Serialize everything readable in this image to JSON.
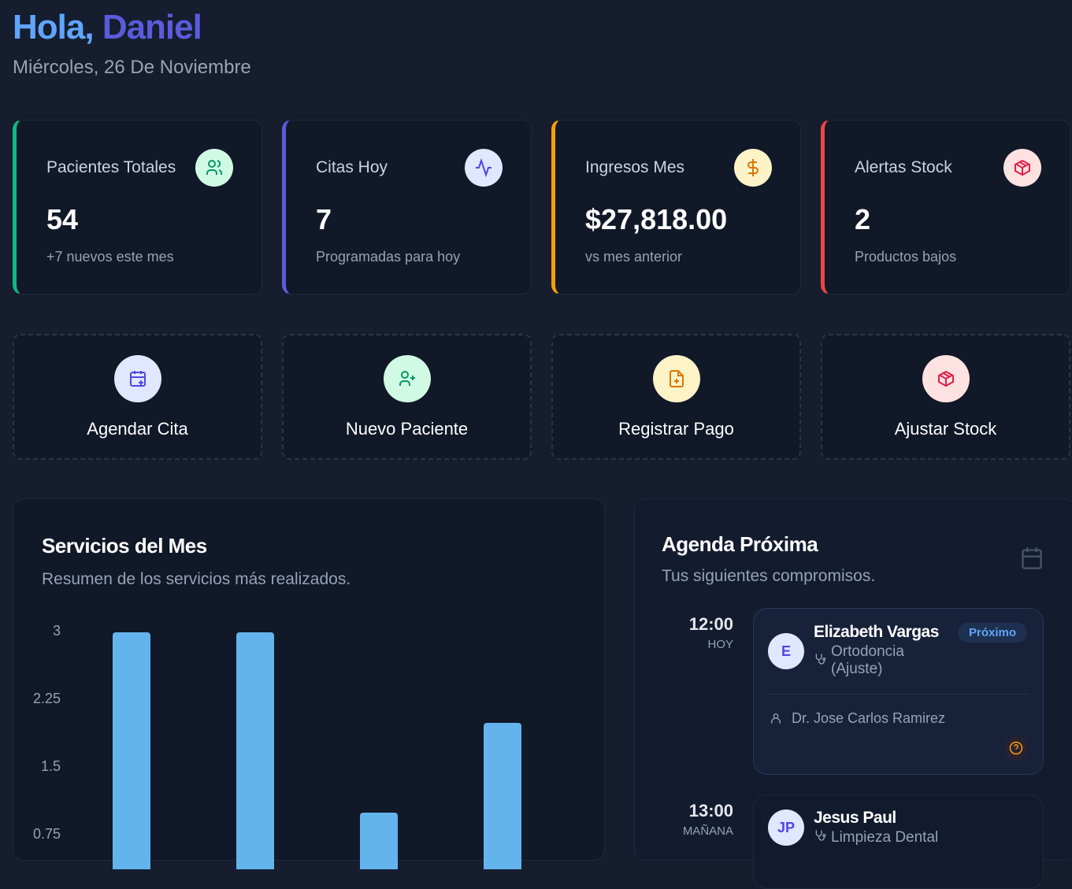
{
  "greeting": {
    "hello": "Hola,",
    "name": "Daniel",
    "date": "Miércoles, 26 De Noviembre"
  },
  "stats": [
    {
      "label": "Pacientes Totales",
      "value": "54",
      "sub": "+7 nuevos este mes",
      "icon": "users-icon",
      "color": "#10b981"
    },
    {
      "label": "Citas Hoy",
      "value": "7",
      "sub": "Programadas para hoy",
      "icon": "activity-icon",
      "color": "#5b5bdc"
    },
    {
      "label": "Ingresos Mes",
      "value": "$27,818.00",
      "sub": "vs mes anterior",
      "icon": "dollar-icon",
      "color": "#f59e0b"
    },
    {
      "label": "Alertas Stock",
      "value": "2",
      "sub": "Productos bajos",
      "icon": "package-icon",
      "color": "#ef4444"
    }
  ],
  "actions": [
    {
      "label": "Agendar Cita",
      "icon": "calendar-plus-icon"
    },
    {
      "label": "Nuevo Paciente",
      "icon": "user-plus-icon"
    },
    {
      "label": "Registrar Pago",
      "icon": "file-plus-icon"
    },
    {
      "label": "Ajustar Stock",
      "icon": "package-icon"
    }
  ],
  "services": {
    "title": "Servicios del Mes",
    "subtitle": "Resumen de los servicios más realizados.",
    "chart_data": {
      "type": "bar",
      "values": [
        3,
        3,
        1,
        2
      ],
      "yticks": [
        "3",
        "2.25",
        "1.5",
        "0.75"
      ],
      "ylim": [
        0,
        3
      ],
      "color": "#63b3ed"
    }
  },
  "agenda": {
    "title": "Agenda Próxima",
    "subtitle": "Tus siguientes compromisos.",
    "items": [
      {
        "time": "12:00",
        "day": "HOY",
        "initials": "E",
        "name": "Elizabeth Vargas",
        "service": "Ortodoncia (Ajuste)",
        "badge": "Próximo",
        "doctor": "Dr. Jose Carlos Ramirez"
      },
      {
        "time": "13:00",
        "day": "MAÑANA",
        "initials": "JP",
        "name": "Jesus Paul",
        "service": "Limpieza Dental"
      }
    ]
  }
}
